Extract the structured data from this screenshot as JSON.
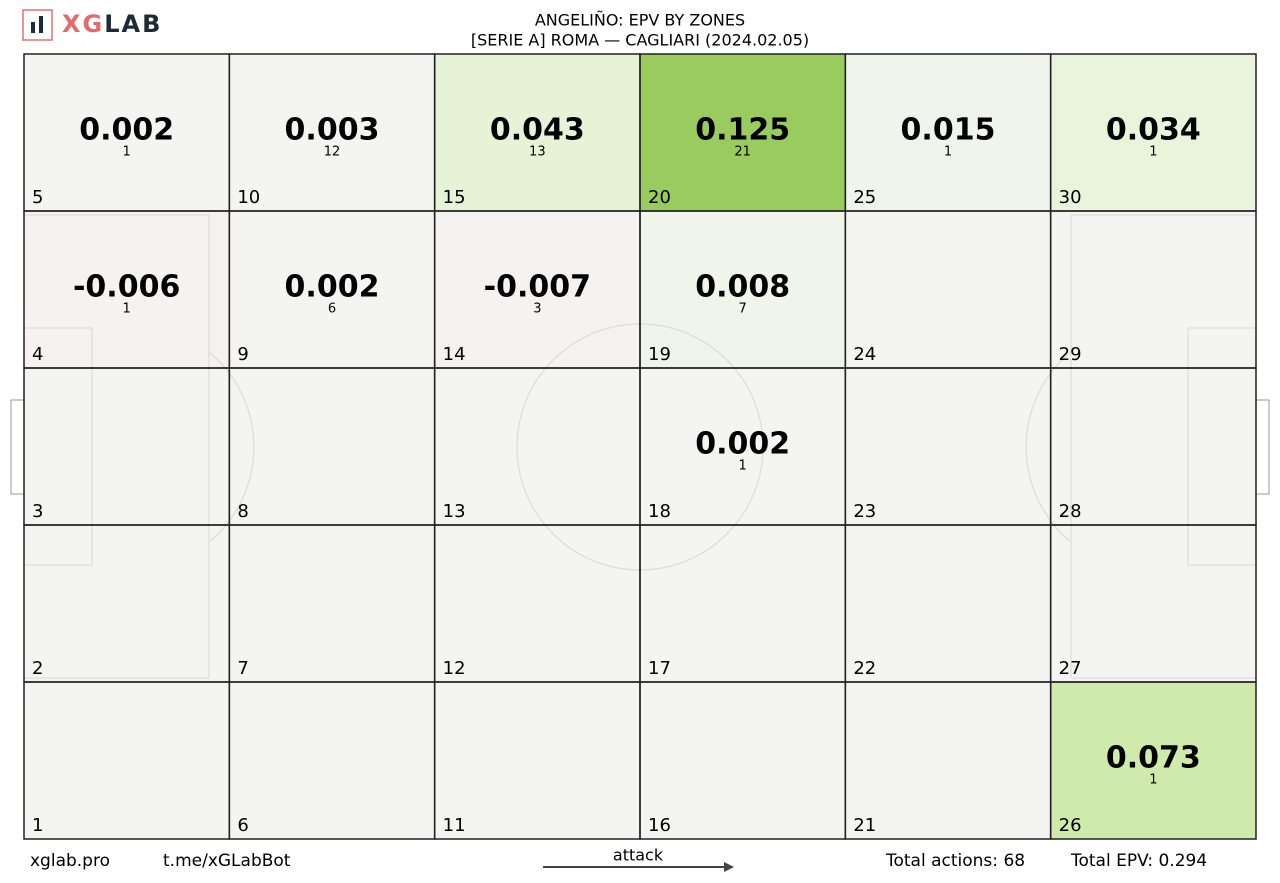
{
  "chart_data": {
    "type": "zone-heatmap",
    "logo": [
      "XG",
      "LAB"
    ],
    "title": "ANGELIÑO: EPV BY ZONES",
    "subtitle": "[SERIE A] ROMA —  CAGLIARI (2024.02.05)",
    "columns": 6,
    "zones": [
      {
        "zone": 5,
        "value": 0.002,
        "count": 1,
        "color": "#f4f4f3"
      },
      {
        "zone": 10,
        "value": 0.003,
        "count": 12,
        "color": "#f4f4f3"
      },
      {
        "zone": 15,
        "value": 0.043,
        "count": 13,
        "color": "#e6f3d7"
      },
      {
        "zone": 20,
        "value": 0.125,
        "count": 21,
        "color": "#99cb5e"
      },
      {
        "zone": 25,
        "value": 0.015,
        "count": 1,
        "color": "#f0f4ec"
      },
      {
        "zone": 30,
        "value": 0.034,
        "count": 1,
        "color": "#e9f4dc"
      },
      {
        "zone": 4,
        "value": -0.006,
        "count": 1,
        "color": "#f6f2f2"
      },
      {
        "zone": 9,
        "value": 0.002,
        "count": 6,
        "color": "#f4f4f3"
      },
      {
        "zone": 14,
        "value": -0.007,
        "count": 3,
        "color": "#f6f2f2"
      },
      {
        "zone": 19,
        "value": 0.008,
        "count": 7,
        "color": "#f0f4ea"
      },
      {
        "zone": 24,
        "color": "#f4f4f3"
      },
      {
        "zone": 29,
        "color": "#f4f4f3"
      },
      {
        "zone": 3,
        "color": "#f4f4f3"
      },
      {
        "zone": 8,
        "color": "#f4f4f3"
      },
      {
        "zone": 13,
        "color": "#f4f4f3"
      },
      {
        "zone": 18,
        "value": 0.002,
        "count": 1,
        "color": "#f4f4f3"
      },
      {
        "zone": 23,
        "color": "#f4f4f3"
      },
      {
        "zone": 28,
        "color": "#f4f4f3"
      },
      {
        "zone": 2,
        "color": "#f4f4f3"
      },
      {
        "zone": 7,
        "color": "#f4f4f3"
      },
      {
        "zone": 12,
        "color": "#f4f4f3"
      },
      {
        "zone": 17,
        "color": "#f4f4f3"
      },
      {
        "zone": 22,
        "color": "#f4f4f3"
      },
      {
        "zone": 27,
        "color": "#f4f4f3"
      },
      {
        "zone": 1,
        "color": "#f4f4f3"
      },
      {
        "zone": 6,
        "color": "#f4f4f3"
      },
      {
        "zone": 11,
        "color": "#f4f4f3"
      },
      {
        "zone": 16,
        "color": "#f4f4f3"
      },
      {
        "zone": 21,
        "color": "#f4f4f3"
      },
      {
        "zone": 26,
        "value": 0.073,
        "count": 1,
        "color": "#cfeaab"
      }
    ],
    "footer": {
      "site": "xglab.pro",
      "bot": "t.me/xGLabBot",
      "direction": "attack",
      "total_actions": {
        "label": "Total actions:",
        "value": 68
      },
      "total_epv": {
        "label": "Total EPV:",
        "value": 0.294
      }
    }
  }
}
